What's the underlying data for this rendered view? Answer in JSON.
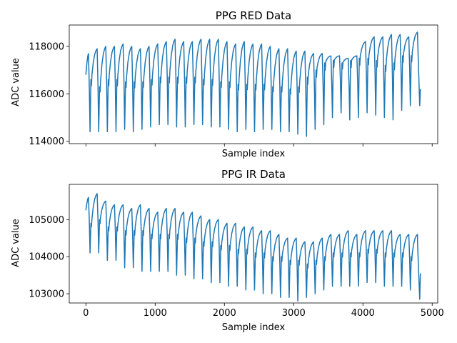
{
  "chart_data": [
    {
      "type": "line",
      "title": "PPG RED Data",
      "xlabel": "Sample index",
      "ylabel": "ADC value",
      "xlim": [
        -240,
        5080
      ],
      "ylim": [
        113900,
        118900
      ],
      "xticks": [
        0,
        1000,
        2000,
        3000,
        4000,
        5000
      ],
      "xtick_labels_shown": false,
      "yticks": [
        114000,
        116000,
        118000
      ],
      "ytick_labels": [
        "114000",
        "116000",
        "118000"
      ],
      "grid": false,
      "legend": "none",
      "series": [
        {
          "color": "#1f77b4",
          "cycle_start_x": 0,
          "cycle_length": 125,
          "x_end": 4830,
          "start_value": 116800,
          "end_value": 116200,
          "peaks": [
            117700,
            117900,
            118000,
            118000,
            118100,
            118000,
            117900,
            118000,
            118100,
            118200,
            118300,
            118200,
            118200,
            118300,
            118300,
            118300,
            118200,
            118100,
            118200,
            118100,
            118100,
            118000,
            117900,
            117900,
            117800,
            117800,
            117700,
            117700,
            117600,
            117600,
            117500,
            117600,
            118200,
            118400,
            118400,
            118500,
            118500,
            118400,
            118600
          ],
          "troughs": [
            114400,
            114400,
            114400,
            114400,
            114500,
            114400,
            114500,
            114600,
            114700,
            114700,
            114600,
            114600,
            114700,
            114700,
            114600,
            114600,
            114500,
            114400,
            114500,
            114400,
            114500,
            114500,
            114400,
            114400,
            114300,
            114200,
            114500,
            114700,
            115000,
            115200,
            114900,
            115000,
            115200,
            115100,
            115000,
            114900,
            115300,
            115500
          ],
          "notch_values": [
            116600,
            116300,
            116600,
            116600,
            116500,
            116500,
            116500,
            116600,
            116700,
            116700,
            116700,
            116700,
            116700,
            116600,
            116600,
            116500,
            116500,
            116400,
            116400,
            116400,
            116400,
            116300,
            116300,
            116200,
            116300,
            116700,
            117000,
            117300,
            117400,
            117300,
            117400,
            117500,
            117500,
            117400,
            117200,
            117300,
            117600,
            117600
          ]
        }
      ]
    },
    {
      "type": "line",
      "title": "PPG IR Data",
      "xlabel": "Sample index",
      "ylabel": "ADC value",
      "xlim": [
        -240,
        5080
      ],
      "ylim": [
        102750,
        105950
      ],
      "xticks": [
        0,
        1000,
        2000,
        3000,
        4000,
        5000
      ],
      "xtick_labels": [
        "0",
        "1000",
        "2000",
        "3000",
        "4000",
        "5000"
      ],
      "yticks": [
        103000,
        104000,
        105000
      ],
      "ytick_labels": [
        "103000",
        "104000",
        "105000"
      ],
      "grid": false,
      "legend": "none",
      "series": [
        {
          "color": "#1f77b4",
          "cycle_start_x": 0,
          "cycle_length": 125,
          "x_end": 4830,
          "start_value": 105250,
          "end_value": 103550,
          "peaks": [
            105600,
            105700,
            105500,
            105400,
            105400,
            105300,
            105400,
            105300,
            105200,
            105300,
            105300,
            105200,
            105200,
            105100,
            105000,
            105000,
            104900,
            104900,
            104800,
            104800,
            104700,
            104700,
            104600,
            104500,
            104500,
            104400,
            104400,
            104500,
            104600,
            104600,
            104700,
            104600,
            104700,
            104700,
            104700,
            104700,
            104600,
            104600,
            104600
          ],
          "troughs": [
            104100,
            104100,
            103900,
            103900,
            103700,
            103700,
            103600,
            103600,
            103600,
            103600,
            103500,
            103500,
            103400,
            103400,
            103300,
            103300,
            103200,
            103200,
            103100,
            103100,
            103000,
            103000,
            102900,
            102900,
            102800,
            102900,
            103000,
            103100,
            103200,
            103200,
            103200,
            103200,
            103300,
            103300,
            103200,
            103200,
            103200,
            103100
          ],
          "notch_values": [
            104900,
            105000,
            104800,
            104800,
            104700,
            104700,
            104700,
            104600,
            104600,
            104600,
            104600,
            104500,
            104500,
            104400,
            104400,
            104300,
            104300,
            104200,
            104200,
            104100,
            104100,
            104000,
            104000,
            103900,
            103900,
            103800,
            103900,
            104000,
            104100,
            104100,
            104100,
            104100,
            104200,
            104200,
            104100,
            104100,
            104100,
            104000
          ]
        }
      ]
    }
  ]
}
